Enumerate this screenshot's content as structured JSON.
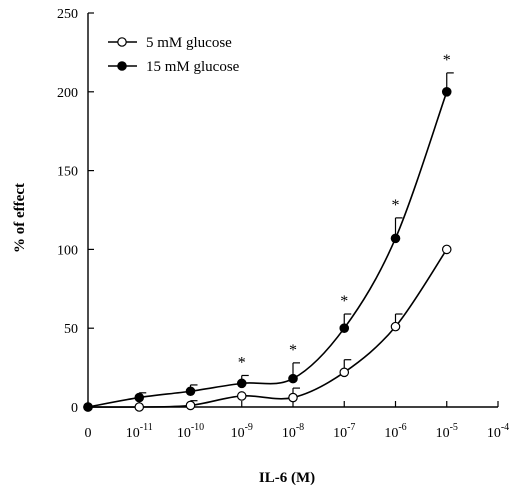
{
  "chart_data": {
    "type": "line",
    "xlabel": "IL-6 (M)",
    "ylabel": "% of effect",
    "ylim": [
      0,
      250
    ],
    "yticks": [
      "0",
      "50",
      "100",
      "150",
      "200",
      "250"
    ],
    "xticks": [
      {
        "base": "0",
        "exp": ""
      },
      {
        "base": "10",
        "exp": "-11"
      },
      {
        "base": "10",
        "exp": "-10"
      },
      {
        "base": "10",
        "exp": "-9"
      },
      {
        "base": "10",
        "exp": "-8"
      },
      {
        "base": "10",
        "exp": "-7"
      },
      {
        "base": "10",
        "exp": "-6"
      },
      {
        "base": "10",
        "exp": "-5"
      },
      {
        "base": "10",
        "exp": "-4"
      }
    ],
    "legend_position": "top-left",
    "series": [
      {
        "name": "5 mM glucose",
        "marker": "open-circle",
        "color": "#000000",
        "x": [
          "0",
          "1e-11",
          "1e-10",
          "1e-9",
          "1e-8",
          "1e-7",
          "1e-6",
          "1e-5"
        ],
        "values": [
          0,
          0,
          1,
          7,
          6,
          22,
          51,
          100
        ],
        "errors": [
          0,
          0,
          3,
          0,
          6,
          8,
          8,
          0
        ]
      },
      {
        "name": "15 mM glucose",
        "marker": "filled-circle",
        "color": "#000000",
        "x": [
          "0",
          "1e-11",
          "1e-10",
          "1e-9",
          "1e-8",
          "1e-7",
          "1e-6",
          "1e-5"
        ],
        "values": [
          0,
          6,
          10,
          15,
          18,
          50,
          107,
          200
        ],
        "errors": [
          0,
          3,
          4,
          5,
          10,
          9,
          13,
          12
        ]
      }
    ],
    "annotations": [
      {
        "text": "*",
        "x": "1e-9"
      },
      {
        "text": "*",
        "x": "1e-8"
      },
      {
        "text": "*",
        "x": "1e-7"
      },
      {
        "text": "*",
        "x": "1e-6"
      },
      {
        "text": "*",
        "x": "1e-5"
      }
    ]
  }
}
